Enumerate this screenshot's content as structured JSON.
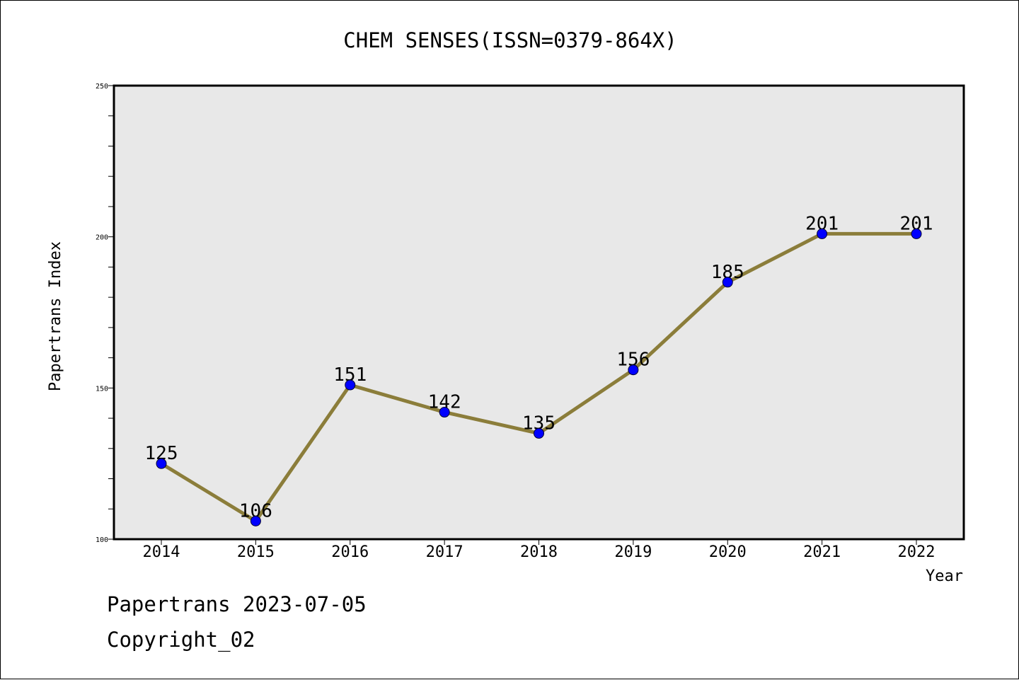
{
  "chart_data": {
    "type": "line",
    "title": "CHEM SENSES(ISSN=0379-864X)",
    "xlabel": "Year",
    "ylabel": "Papertrans Index",
    "x": [
      "2014",
      "2015",
      "2016",
      "2017",
      "2018",
      "2019",
      "2020",
      "2021",
      "2022"
    ],
    "values": [
      125,
      106,
      151,
      142,
      135,
      156,
      185,
      201,
      201
    ],
    "data_labels": [
      "125",
      "106",
      "151",
      "142",
      "135",
      "156",
      "185",
      "201",
      "201"
    ],
    "ylim": [
      100,
      250
    ],
    "y_ticks": [
      "100",
      "150",
      "200",
      "250"
    ],
    "grid": false,
    "colors": {
      "line": "#8b7d3a",
      "marker": "#0000ff",
      "plot_background": "#e8e8e8"
    }
  },
  "footer": {
    "source": "Papertrans 2023-07-05",
    "copyright": "Copyright_02"
  }
}
